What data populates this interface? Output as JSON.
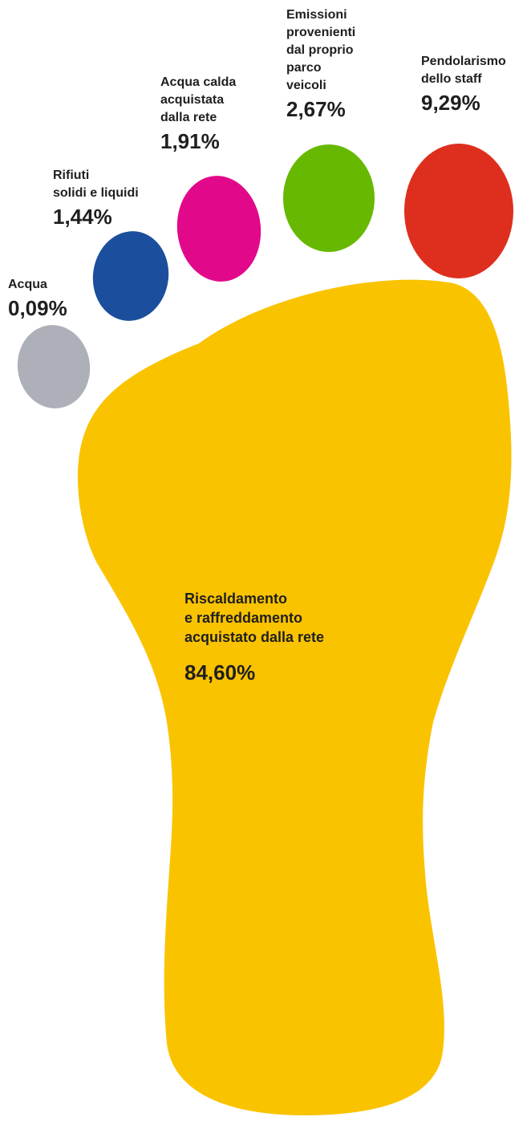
{
  "chart_data": {
    "type": "pie",
    "title": "",
    "slices": [
      {
        "label": "Acqua",
        "value_text": "0,09%",
        "value": 0.09,
        "color": "#ADAFB9"
      },
      {
        "label": "Rifiuti\nsolidi e liquidi",
        "value_text": "1,44%",
        "value": 1.44,
        "color": "#1B4F9D"
      },
      {
        "label": "Acqua calda\nacquistata\ndalla rete",
        "value_text": "1,91%",
        "value": 1.91,
        "color": "#E2088A"
      },
      {
        "label": "Emissioni\nprovenienti\ndal proprio\nparco\nveicoli",
        "value_text": "2,67%",
        "value": 2.67,
        "color": "#67B800"
      },
      {
        "label": "Pendolarismo\ndello staff",
        "value_text": "9,29%",
        "value": 9.29,
        "color": "#DE2F1E"
      },
      {
        "label": "Riscaldamento\ne raffreddamento\nacquistato dalla rete",
        "value_text": "84,60%",
        "value": 84.6,
        "color": "#FAC300"
      }
    ]
  }
}
